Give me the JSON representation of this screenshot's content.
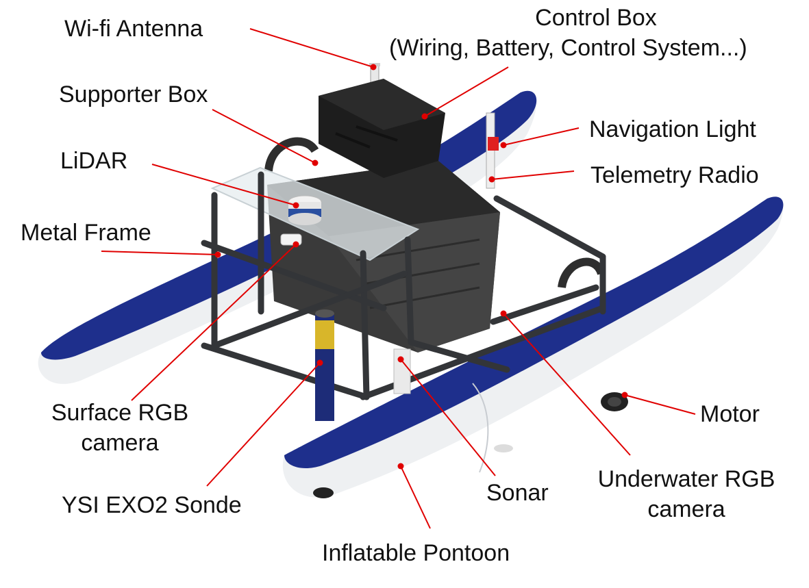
{
  "labels": {
    "wifi_antenna": "Wi-fi Antenna",
    "control_box": "Control Box",
    "control_box_detail": "(Wiring, Battery, Control System...)",
    "supporter_box": "Supporter Box",
    "navigation_light": "Navigation Light",
    "lidar": "LiDAR",
    "telemetry_radio": "Telemetry Radio",
    "metal_frame": "Metal Frame",
    "surface_rgb_line1": "Surface RGB",
    "surface_rgb_line2": "camera",
    "motor": "Motor",
    "underwater_rgb_line1": "Underwater RGB",
    "underwater_rgb_line2": "camera",
    "ysi_sonde": "YSI EXO2 Sonde",
    "sonar": "Sonar",
    "pontoon": "Inflatable Pontoon"
  },
  "colors": {
    "pontoon_blue": "#1e2f8c",
    "pontoon_white": "#eef0f2",
    "frame_dark": "#333538",
    "box_dark": "#3a3a3a",
    "control_box_black": "#1d1d1d",
    "leader_line_red": "#e00000",
    "nav_light_red": "#e02020",
    "sonde_yellow": "#d8b62a",
    "sonde_blue": "#1d2c78"
  }
}
